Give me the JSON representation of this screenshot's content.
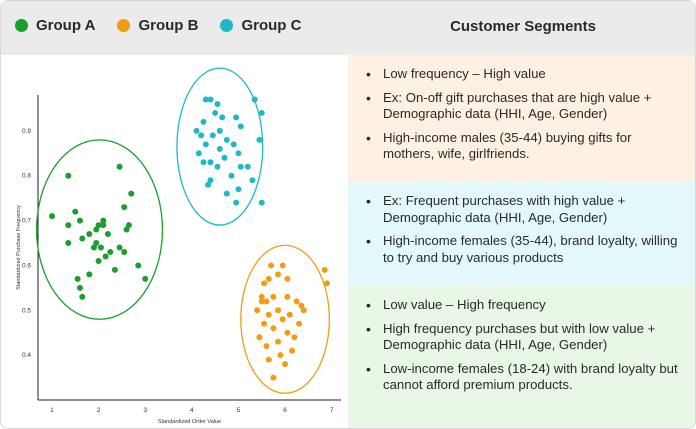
{
  "legend": [
    {
      "label": "Group A",
      "color": "#1a9e2e"
    },
    {
      "label": "Group B",
      "color": "#f39c12"
    },
    {
      "label": "Group C",
      "color": "#1fb8c6"
    }
  ],
  "panel_title": "Customer Segments",
  "segments": [
    {
      "color": "#fdf1e3",
      "bullets": [
        "Low frequency – High value",
        "Ex: On-off gift purchases that are high value + Demographic data (HHI, Age, Gender)",
        "High-income males (35-44) buying gifts for mothers, wife, girlfriends."
      ]
    },
    {
      "color": "#e3f8fb",
      "bullets": [
        "Ex: Frequent purchases with high value + Demographic data (HHI, Age, Gender)",
        "High-income females (35-44), brand loyalty, willing to try and buy various products"
      ]
    },
    {
      "color": "#e8f7e6",
      "bullets": [
        "Low value – High frequency",
        "High frequency purchases but with low value + Demographic data (HHI, Age, Gender)",
        "Low-income females (18-24) with brand loyalty but cannot afford premium products."
      ]
    }
  ],
  "chart_data": {
    "type": "scatter",
    "xlabel": "Standardized Order Value",
    "ylabel": "Standardized Purchase Frequency",
    "xlim": [
      0.7,
      7.2
    ],
    "ylim": [
      0.3,
      0.98
    ],
    "x_ticks": [
      "1",
      "2",
      "3",
      "4",
      "5",
      "6",
      "7"
    ],
    "y_ticks": [
      "0.4",
      "0.5",
      "0.6",
      "0.7",
      "0.8",
      "0.9"
    ],
    "grid": false,
    "series": [
      {
        "name": "Group A",
        "color": "#1a9e2e",
        "ellipse": {
          "cx": 2.02,
          "cy": 0.68,
          "rx": 1.35,
          "ry": 0.2
        },
        "points": [
          [
            1.0,
            0.71
          ],
          [
            1.35,
            0.8
          ],
          [
            1.5,
            0.72
          ],
          [
            1.35,
            0.69
          ],
          [
            1.6,
            0.7
          ],
          [
            1.35,
            0.65
          ],
          [
            1.65,
            0.66
          ],
          [
            1.55,
            0.57
          ],
          [
            1.65,
            0.53
          ],
          [
            1.6,
            0.55
          ],
          [
            1.8,
            0.67
          ],
          [
            1.9,
            0.64
          ],
          [
            1.95,
            0.68
          ],
          [
            2.0,
            0.69
          ],
          [
            2.1,
            0.7
          ],
          [
            1.95,
            0.65
          ],
          [
            2.05,
            0.64
          ],
          [
            2.1,
            0.69
          ],
          [
            2.2,
            0.67
          ],
          [
            2.15,
            0.62
          ],
          [
            2.0,
            0.61
          ],
          [
            1.8,
            0.58
          ],
          [
            2.25,
            0.63
          ],
          [
            2.35,
            0.59
          ],
          [
            2.45,
            0.64
          ],
          [
            2.6,
            0.68
          ],
          [
            2.65,
            0.69
          ],
          [
            2.45,
            0.82
          ],
          [
            2.55,
            0.73
          ],
          [
            2.7,
            0.76
          ],
          [
            2.85,
            0.6
          ],
          [
            3.0,
            0.57
          ],
          [
            2.55,
            0.63
          ]
        ]
      },
      {
        "name": "Group B",
        "color": "#f39c12",
        "ellipse": {
          "cx": 6.0,
          "cy": 0.48,
          "rx": 0.95,
          "ry": 0.165
        },
        "points": [
          [
            5.7,
            0.6
          ],
          [
            5.95,
            0.6
          ],
          [
            5.65,
            0.57
          ],
          [
            5.85,
            0.58
          ],
          [
            6.05,
            0.57
          ],
          [
            5.55,
            0.56
          ],
          [
            5.5,
            0.53
          ],
          [
            5.75,
            0.53
          ],
          [
            5.6,
            0.52
          ],
          [
            5.4,
            0.5
          ],
          [
            5.65,
            0.49
          ],
          [
            5.85,
            0.5
          ],
          [
            6.05,
            0.53
          ],
          [
            6.25,
            0.52
          ],
          [
            6.35,
            0.51
          ],
          [
            5.55,
            0.47
          ],
          [
            5.75,
            0.46
          ],
          [
            5.95,
            0.48
          ],
          [
            6.1,
            0.49
          ],
          [
            6.3,
            0.47
          ],
          [
            5.45,
            0.44
          ],
          [
            5.6,
            0.42
          ],
          [
            5.85,
            0.43
          ],
          [
            6.05,
            0.45
          ],
          [
            6.2,
            0.44
          ],
          [
            5.65,
            0.39
          ],
          [
            5.9,
            0.4
          ],
          [
            6.15,
            0.41
          ],
          [
            6.0,
            0.38
          ],
          [
            5.75,
            0.35
          ],
          [
            6.85,
            0.59
          ],
          [
            6.9,
            0.56
          ],
          [
            5.5,
            0.52
          ],
          [
            6.4,
            0.5
          ]
        ]
      },
      {
        "name": "Group C",
        "color": "#1fb8c6",
        "ellipse": {
          "cx": 4.6,
          "cy": 0.865,
          "rx": 0.92,
          "ry": 0.175
        },
        "points": [
          [
            4.3,
            0.97
          ],
          [
            4.4,
            0.97
          ],
          [
            4.55,
            0.96
          ],
          [
            5.35,
            0.97
          ],
          [
            4.5,
            0.94
          ],
          [
            4.65,
            0.93
          ],
          [
            4.25,
            0.92
          ],
          [
            5.5,
            0.94
          ],
          [
            4.1,
            0.9
          ],
          [
            4.6,
            0.9
          ],
          [
            4.95,
            0.93
          ],
          [
            5.05,
            0.91
          ],
          [
            4.2,
            0.89
          ],
          [
            4.45,
            0.89
          ],
          [
            4.75,
            0.88
          ],
          [
            4.3,
            0.87
          ],
          [
            4.6,
            0.86
          ],
          [
            4.9,
            0.87
          ],
          [
            5.45,
            0.88
          ],
          [
            4.15,
            0.85
          ],
          [
            4.7,
            0.84
          ],
          [
            5.0,
            0.85
          ],
          [
            4.4,
            0.83
          ],
          [
            4.55,
            0.82
          ],
          [
            4.25,
            0.83
          ],
          [
            5.05,
            0.82
          ],
          [
            5.2,
            0.82
          ],
          [
            4.85,
            0.8
          ],
          [
            4.4,
            0.79
          ],
          [
            4.35,
            0.78
          ],
          [
            4.75,
            0.76
          ],
          [
            5.0,
            0.77
          ],
          [
            4.95,
            0.74
          ],
          [
            5.5,
            0.74
          ],
          [
            5.3,
            0.79
          ]
        ]
      }
    ]
  }
}
